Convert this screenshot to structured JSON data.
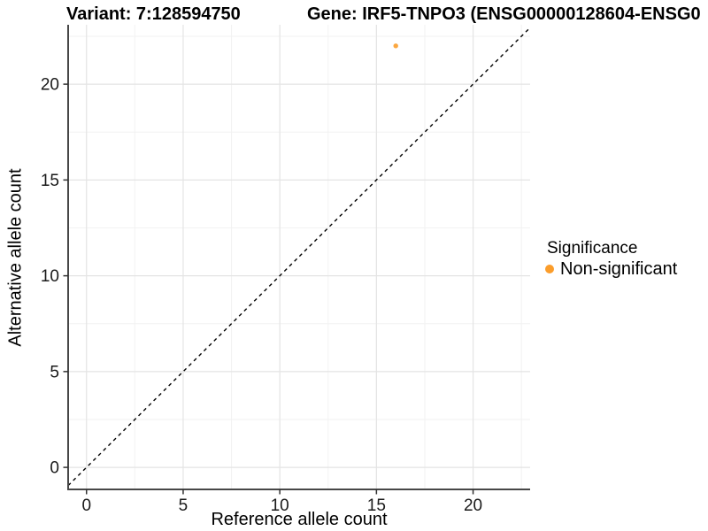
{
  "page": {
    "background": "#FFFFFF"
  },
  "chart_data": {
    "type": "scatter",
    "title_variant": "Variant: 7:128594750",
    "title_gene": "Gene: IRF5-TNPO3 (ENSG00000128604-ENSG0",
    "xlabel": "Reference allele count",
    "ylabel": "Alternative allele count",
    "xlim": [
      -0.95,
      22.95
    ],
    "ylim": [
      -1.15,
      23.1
    ],
    "xticks": [
      0,
      5,
      10,
      15,
      20
    ],
    "yticks": [
      0,
      5,
      10,
      15,
      20
    ],
    "minor_grid_offset": 2.5,
    "minor_grid_step": 5,
    "grid": true,
    "identity_line": {
      "slope": 1,
      "intercept": 0,
      "style": "dashed",
      "color": "#000000"
    },
    "series": [
      {
        "name": "Non-significant",
        "color": "#FB9D2B",
        "point_opacity": 0.9,
        "points": [
          {
            "x": 16,
            "y": 22
          }
        ]
      }
    ],
    "legend": {
      "title": "Significance",
      "position": "right",
      "items": [
        {
          "label": "Non-significant",
          "color": "#FB9D2B"
        }
      ]
    },
    "style_colors": {
      "grid_major": "#E4E4E4",
      "grid_minor": "#F2F2F2",
      "axis_line": "#474747",
      "tick_mark": "#333333",
      "tick_label": "#1A1A1A"
    }
  }
}
